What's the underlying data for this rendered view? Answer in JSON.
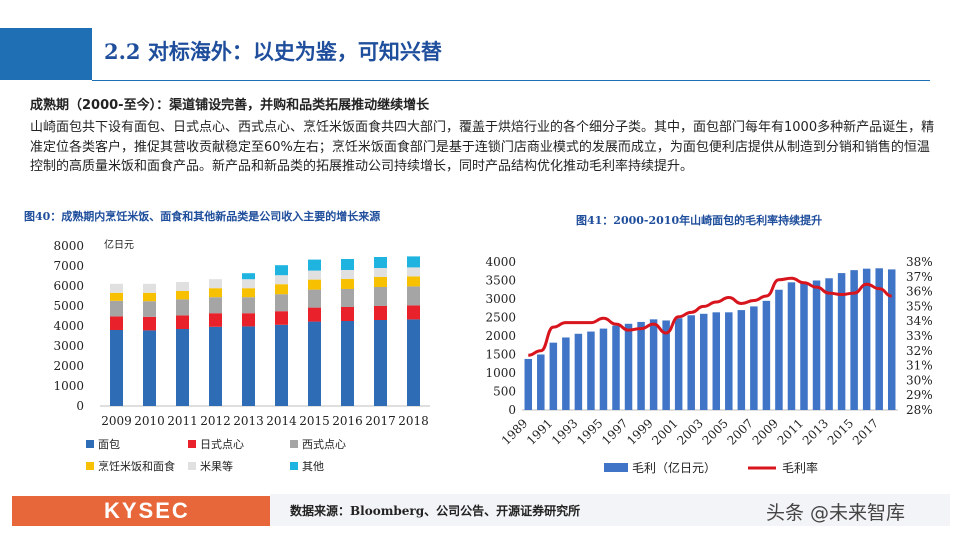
{
  "header": {
    "title": "2.2 对标海外：以史为鉴，可知兴替"
  },
  "section": {
    "subhead": "成熟期（2000-至今）：渠道铺设完善，并购和品类拓展推动继续增长",
    "body": "山崎面包共下设有面包、日式点心、西式点心、烹饪米饭面食共四大部门，覆盖于烘焙行业的各个细分子类。其中，面包部门每年有1000多种新产品诞生，精准定位各类客户，推促其营收贡献稳定至60%左右；烹饪米饭面食部门是基于连锁门店商业模式的发展而成立，为面包便利店提供从制造到分销和销售的恒温控制的高质量米饭和面食产品。新产品和新品类的拓展推动公司持续增长，同时产品结构优化推动毛利率持续提升。"
  },
  "chart_data": [
    {
      "type": "bar",
      "stacked": true,
      "title": "图40：成熟期内烹饪米饭、面食和其他新品类是公司收入主要的增长来源",
      "unit_label": "亿日元",
      "categories": [
        "2009",
        "2010",
        "2011",
        "2012",
        "2013",
        "2014",
        "2015",
        "2016",
        "2017",
        "2018"
      ],
      "ylim": [
        0,
        8000
      ],
      "yticks": [
        "0",
        "1000",
        "2000",
        "3000",
        "4000",
        "5000",
        "6000",
        "7000",
        "8000"
      ],
      "series": [
        {
          "name": "面包",
          "color": "#2e6db5",
          "values": [
            3800,
            3780,
            3850,
            3960,
            3980,
            4060,
            4220,
            4250,
            4300,
            4330
          ]
        },
        {
          "name": "日式点心",
          "color": "#e8212a",
          "values": [
            680,
            680,
            680,
            680,
            660,
            680,
            700,
            700,
            700,
            700
          ]
        },
        {
          "name": "西式点心",
          "color": "#a5a5a5",
          "values": [
            780,
            780,
            800,
            800,
            800,
            850,
            900,
            900,
            950,
            950
          ]
        },
        {
          "name": "烹饪米饭和面食",
          "color": "#f7c000",
          "values": [
            400,
            420,
            420,
            450,
            450,
            500,
            500,
            500,
            500,
            500
          ]
        },
        {
          "name": "米果等",
          "color": "#e0e0e0",
          "values": [
            450,
            450,
            450,
            450,
            450,
            450,
            450,
            450,
            450,
            450
          ]
        },
        {
          "name": "其他",
          "color": "#1fb3e0",
          "values": [
            0,
            0,
            0,
            0,
            300,
            500,
            550,
            550,
            550,
            550
          ]
        }
      ],
      "legend_position": "bottom",
      "grid": false
    },
    {
      "type": "bar+line",
      "title": "图41：2000-2010年山崎面包的毛利率持续提升",
      "x": [
        "1989",
        "1990",
        "1991",
        "1992",
        "1993",
        "1994",
        "1995",
        "1996",
        "1997",
        "1998",
        "1999",
        "2000",
        "2001",
        "2002",
        "2003",
        "2004",
        "2005",
        "2006",
        "2007",
        "2008",
        "2009",
        "2010",
        "2011",
        "2012",
        "2013",
        "2014",
        "2015",
        "2016",
        "2017",
        "2018"
      ],
      "xticks": [
        "1989",
        "1991",
        "1993",
        "1995",
        "1997",
        "1999",
        "2001",
        "2003",
        "2005",
        "2007",
        "2009",
        "2011",
        "2013",
        "2015",
        "2017"
      ],
      "ylim_left": [
        0,
        4000
      ],
      "yticks_left": [
        "0",
        "500",
        "1000",
        "1500",
        "2000",
        "2500",
        "3000",
        "3500",
        "4000"
      ],
      "ylim_right": [
        28,
        38
      ],
      "yticks_right": [
        "28%",
        "29%",
        "30%",
        "31%",
        "32%",
        "33%",
        "34%",
        "35%",
        "36%",
        "37%",
        "38%"
      ],
      "series": [
        {
          "name": "毛利（亿日元）",
          "type": "bar",
          "axis": "left",
          "color": "#3f74c6",
          "values": [
            1380,
            1500,
            1820,
            1960,
            2060,
            2120,
            2200,
            2280,
            2330,
            2380,
            2450,
            2420,
            2480,
            2560,
            2600,
            2640,
            2640,
            2700,
            2800,
            2950,
            3250,
            3450,
            3450,
            3500,
            3560,
            3700,
            3780,
            3820,
            3830,
            3800
          ]
        },
        {
          "name": "毛利率",
          "type": "line",
          "axis": "right",
          "color": "#d8141d",
          "values": [
            31.7,
            32.0,
            33.6,
            33.9,
            33.9,
            33.9,
            34.2,
            33.8,
            33.4,
            33.5,
            33.8,
            33.2,
            34.3,
            34.6,
            35.0,
            35.3,
            35.6,
            35.2,
            35.4,
            35.7,
            36.8,
            36.9,
            36.6,
            36.3,
            35.9,
            35.8,
            35.9,
            36.5,
            36.2,
            35.7
          ]
        }
      ],
      "legend_position": "bottom",
      "grid": false
    }
  ],
  "footer": {
    "logo_text": "KYSEC",
    "source": "数据来源：Bloomberg、公司公告、开源证券研究所",
    "watermark": "头条 @未来智库"
  },
  "colors": {
    "brand_blue": "#1f6fb5",
    "title_blue": "#1f4e9c",
    "logo_orange": "#e8673a"
  }
}
